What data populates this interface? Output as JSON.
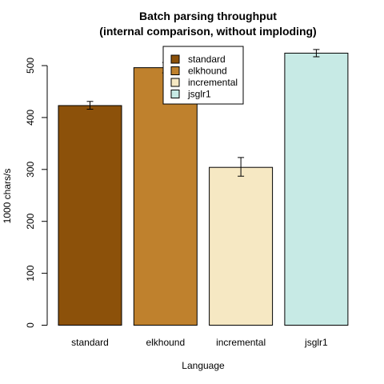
{
  "chart_data": {
    "type": "bar",
    "title": "Batch parsing throughput",
    "subtitle": "(internal comparison, without imploding)",
    "xlabel": "Language",
    "ylabel": "1000 chars/s",
    "categories": [
      "standard",
      "elkhound",
      "incremental",
      "jsglr1"
    ],
    "values": [
      423,
      496,
      304,
      524
    ],
    "errors": [
      [
        416,
        431
      ],
      [
        486,
        506
      ],
      [
        287,
        323
      ],
      [
        517,
        531
      ]
    ],
    "colors": [
      "#8C510A",
      "#BF812D",
      "#F6E8C3",
      "#C7EAE5"
    ],
    "ylim": [
      0,
      540
    ],
    "yticks": [
      0,
      100,
      200,
      300,
      400,
      500
    ],
    "legend": {
      "placement": "top-center",
      "entries": [
        "standard",
        "elkhound",
        "incremental",
        "jsglr1"
      ]
    },
    "grid": false
  }
}
